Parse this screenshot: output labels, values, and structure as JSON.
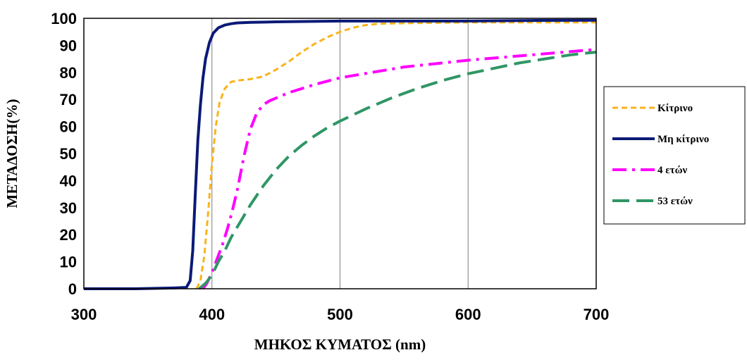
{
  "chart_data": {
    "type": "line",
    "xlabel": "ΜΗΚΟΣ ΚΥΜΑΤΟΣ (nm)",
    "ylabel": "ΜΕΤΑΔΟΣΗ(%)",
    "xlim": [
      300,
      700
    ],
    "ylim": [
      0,
      100
    ],
    "x_ticks": [
      "300",
      "400",
      "500",
      "600",
      "700"
    ],
    "y_ticks": [
      "0",
      "10",
      "20",
      "30",
      "40",
      "50",
      "60",
      "70",
      "80",
      "90",
      "100"
    ],
    "grid": "vertical",
    "legend_position": "right",
    "series": [
      {
        "name": "Κίτρινο",
        "color": "#F9B31B",
        "style": "short-dash",
        "x": [
          388,
          391,
          394,
          397,
          400,
          403,
          406,
          410,
          415,
          420,
          430,
          440,
          450,
          460,
          470,
          480,
          490,
          500,
          510,
          520,
          530,
          550,
          600,
          650,
          700
        ],
        "y": [
          0,
          3,
          12,
          28,
          46,
          60,
          69,
          74,
          76.5,
          77,
          77.5,
          78.5,
          81,
          84,
          87.5,
          90.5,
          93,
          95,
          96.5,
          97.5,
          98,
          98.2,
          98.5,
          98.5,
          98.5
        ]
      },
      {
        "name": "Μη κίτρινο",
        "color": "#0B1A77",
        "style": "solid",
        "x": [
          300,
          340,
          370,
          380,
          383,
          385,
          387,
          389,
          391,
          393,
          395,
          398,
          401,
          405,
          410,
          415,
          420,
          430,
          450,
          500,
          550,
          600,
          650,
          700
        ],
        "y": [
          0,
          0,
          0.3,
          0.5,
          3,
          14,
          35,
          55,
          68,
          78,
          85,
          91,
          94.5,
          96.5,
          97.5,
          98,
          98.3,
          98.5,
          98.7,
          99,
          99,
          99,
          99.2,
          99.3
        ]
      },
      {
        "name": "4 ετών",
        "color": "#FF00FF",
        "style": "dash-dot",
        "x": [
          393,
          396,
          400,
          404,
          408,
          412,
          416,
          420,
          425,
          430,
          435,
          440,
          445,
          450,
          460,
          480,
          500,
          550,
          600,
          650,
          700
        ],
        "y": [
          0,
          2,
          6,
          11,
          16,
          22,
          29,
          37,
          49,
          59,
          65,
          68,
          69.5,
          70.5,
          72.5,
          75.5,
          78,
          82,
          84.5,
          86.5,
          88.5
        ]
      },
      {
        "name": "53 ετών",
        "color": "#2F9665",
        "style": "long-dash",
        "x": [
          390,
          395,
          400,
          405,
          410,
          415,
          420,
          430,
          440,
          450,
          460,
          470,
          480,
          490,
          500,
          520,
          540,
          560,
          580,
          600,
          620,
          640,
          660,
          680,
          700
        ],
        "y": [
          0,
          2,
          5,
          10,
          14,
          19,
          23,
          31,
          38,
          44,
          49,
          53,
          56.5,
          59.5,
          62,
          66.5,
          70.5,
          74,
          77,
          79.5,
          81.5,
          83.5,
          85,
          86.5,
          87.5
        ]
      }
    ]
  }
}
